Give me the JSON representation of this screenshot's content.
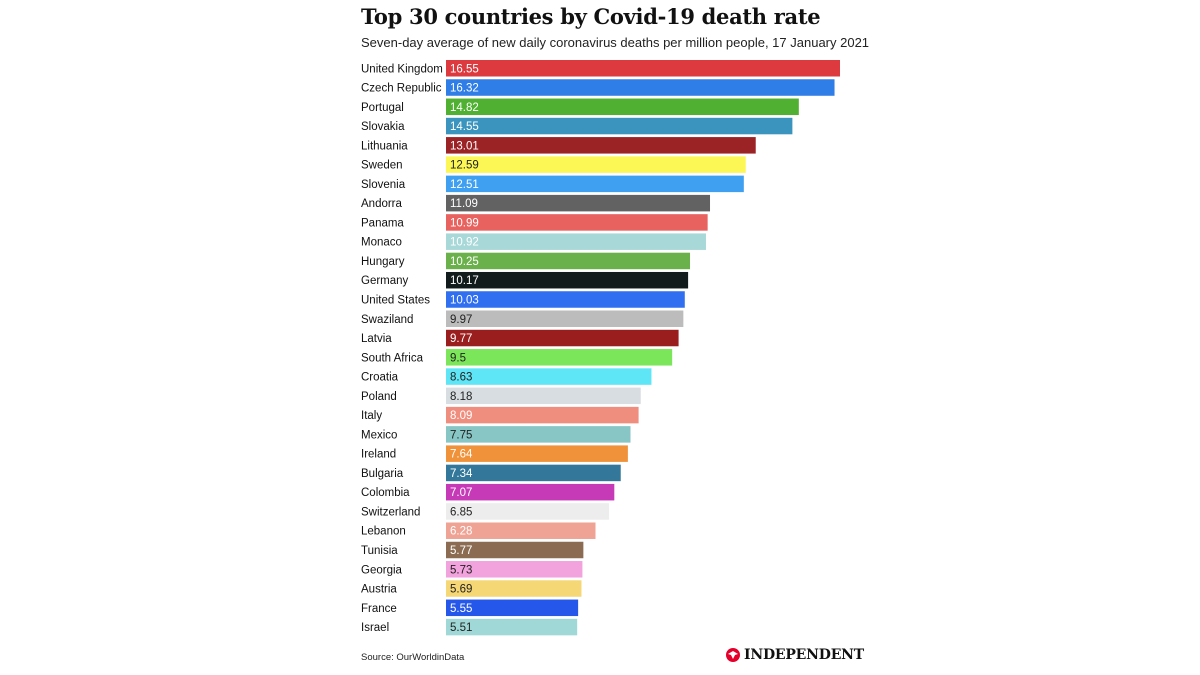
{
  "header": {
    "title": "Top 30 countries by Covid-19 death rate",
    "subtitle": "Seven-day average of new daily coronavirus deaths per million people, 17 January 2021"
  },
  "footer": {
    "source": "Source: OurWorldinData",
    "brand": "INDEPENDENT",
    "brand_color": "#e4002b"
  },
  "chart_data": {
    "type": "bar",
    "orientation": "horizontal",
    "title": "Top 30 countries by Covid-19 death rate",
    "subtitle": "Seven-day average of new daily coronavirus deaths per million people, 17 January 2021",
    "grid": false,
    "xlim": [
      0,
      16.55
    ],
    "categories": [
      "United Kingdom",
      "Czech Republic",
      "Portugal",
      "Slovakia",
      "Lithuania",
      "Sweden",
      "Slovenia",
      "Andorra",
      "Panama",
      "Monaco",
      "Hungary",
      "Germany",
      "United States",
      "Swaziland",
      "Latvia",
      "South Africa",
      "Croatia",
      "Poland",
      "Italy",
      "Mexico",
      "Ireland",
      "Bulgaria",
      "Colombia",
      "Switzerland",
      "Lebanon",
      "Tunisia",
      "Georgia",
      "Austria",
      "France",
      "Israel"
    ],
    "values": [
      16.55,
      16.32,
      14.82,
      14.55,
      13.01,
      12.59,
      12.51,
      11.09,
      10.99,
      10.92,
      10.25,
      10.17,
      10.03,
      9.97,
      9.77,
      9.5,
      8.63,
      8.18,
      8.09,
      7.75,
      7.64,
      7.34,
      7.07,
      6.85,
      6.28,
      5.77,
      5.73,
      5.69,
      5.55,
      5.51
    ],
    "data_labels": [
      "16.55",
      "16.32",
      "14.82",
      "14.55",
      "13.01",
      "12.59",
      "12.51",
      "11.09",
      "10.99",
      "10.92",
      "10.25",
      "10.17",
      "10.03",
      "9.97",
      "9.77",
      "9.5",
      "8.63",
      "8.18",
      "8.09",
      "7.75",
      "7.64",
      "7.34",
      "7.07",
      "6.85",
      "6.28",
      "5.77",
      "5.73",
      "5.69",
      "5.55",
      "5.51"
    ],
    "colors": [
      "#dc3a3f",
      "#2f7de6",
      "#4fb031",
      "#3a94bd",
      "#9b2326",
      "#fcf755",
      "#3f9ff0",
      "#626262",
      "#e8625f",
      "#a8d8d8",
      "#6ab04b",
      "#111b1b",
      "#2f6ff0",
      "#bcbcbc",
      "#9b1e1e",
      "#7be65a",
      "#5ee6f7",
      "#d7dde0",
      "#ef8e7e",
      "#88c6c6",
      "#ef923a",
      "#33789a",
      "#c63ab7",
      "#ededed",
      "#efa395",
      "#8b6c52",
      "#f2a2dd",
      "#f6d775",
      "#2457ea",
      "#9fd8d6"
    ],
    "label_colors": [
      "#ffffff",
      "#ffffff",
      "#ffffff",
      "#ffffff",
      "#ffffff",
      "#222222",
      "#ffffff",
      "#ffffff",
      "#ffffff",
      "#ffffff",
      "#ffffff",
      "#ffffff",
      "#ffffff",
      "#222222",
      "#ffffff",
      "#222222",
      "#222222",
      "#222222",
      "#ffffff",
      "#222222",
      "#ffffff",
      "#ffffff",
      "#ffffff",
      "#222222",
      "#ffffff",
      "#ffffff",
      "#222222",
      "#222222",
      "#ffffff",
      "#222222"
    ]
  }
}
